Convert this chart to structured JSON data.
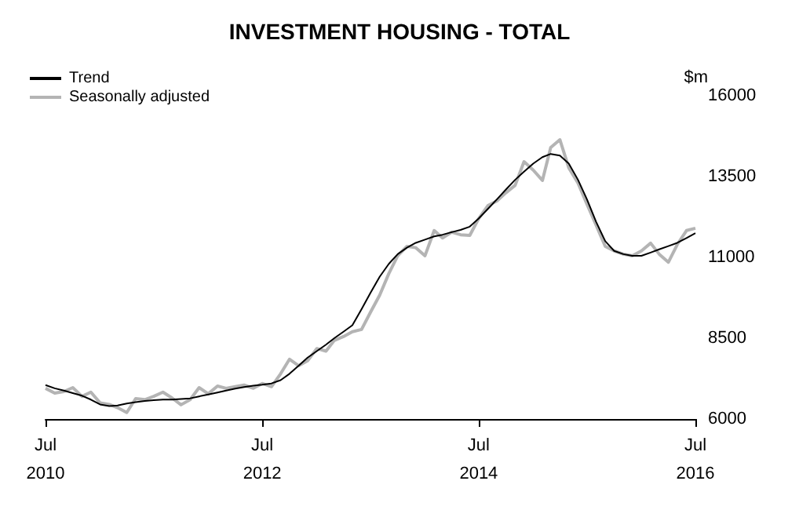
{
  "chart_data": {
    "type": "line",
    "title": "INVESTMENT HOUSING - TOTAL",
    "ylabel": "$m",
    "x": [
      "2010-07",
      "2010-08",
      "2010-09",
      "2010-10",
      "2010-11",
      "2010-12",
      "2011-01",
      "2011-02",
      "2011-03",
      "2011-04",
      "2011-05",
      "2011-06",
      "2011-07",
      "2011-08",
      "2011-09",
      "2011-10",
      "2011-11",
      "2011-12",
      "2012-01",
      "2012-02",
      "2012-03",
      "2012-04",
      "2012-05",
      "2012-06",
      "2012-07",
      "2012-08",
      "2012-09",
      "2012-10",
      "2012-11",
      "2012-12",
      "2013-01",
      "2013-02",
      "2013-03",
      "2013-04",
      "2013-05",
      "2013-06",
      "2013-07",
      "2013-08",
      "2013-09",
      "2013-10",
      "2013-11",
      "2013-12",
      "2014-01",
      "2014-02",
      "2014-03",
      "2014-04",
      "2014-05",
      "2014-06",
      "2014-07",
      "2014-08",
      "2014-09",
      "2014-10",
      "2014-11",
      "2014-12",
      "2015-01",
      "2015-02",
      "2015-03",
      "2015-04",
      "2015-05",
      "2015-06",
      "2015-07",
      "2015-08",
      "2015-09",
      "2015-10",
      "2015-11",
      "2015-12",
      "2016-01",
      "2016-02",
      "2016-03",
      "2016-04",
      "2016-05",
      "2016-06",
      "2016-07"
    ],
    "series": [
      {
        "name": "Trend",
        "color": "#000000",
        "values": [
          7050,
          6950,
          6880,
          6800,
          6720,
          6600,
          6450,
          6400,
          6420,
          6480,
          6520,
          6560,
          6580,
          6600,
          6600,
          6620,
          6640,
          6700,
          6760,
          6820,
          6880,
          6940,
          6990,
          7030,
          7060,
          7100,
          7200,
          7400,
          7650,
          7900,
          8100,
          8300,
          8500,
          8700,
          8900,
          9400,
          9900,
          10400,
          10800,
          11100,
          11300,
          11450,
          11550,
          11650,
          11700,
          11780,
          11850,
          11950,
          12200,
          12500,
          12800,
          13100,
          13400,
          13650,
          13900,
          14100,
          14200,
          14150,
          13900,
          13400,
          12800,
          12100,
          11500,
          11200,
          11100,
          11050,
          11050,
          11150,
          11250,
          11350,
          11450,
          11600,
          11750
        ]
      },
      {
        "name": "Seasonally adjusted",
        "color": "#b4b4b4",
        "values": [
          6950,
          6800,
          6850,
          6970,
          6700,
          6830,
          6500,
          6450,
          6350,
          6200,
          6630,
          6600,
          6700,
          6830,
          6650,
          6440,
          6600,
          6970,
          6780,
          7020,
          6950,
          7000,
          7050,
          6950,
          7100,
          7000,
          7400,
          7850,
          7650,
          7800,
          8180,
          8100,
          8430,
          8550,
          8700,
          8770,
          9300,
          9830,
          10500,
          11050,
          11340,
          11300,
          11050,
          11830,
          11600,
          11780,
          11700,
          11680,
          12200,
          12600,
          12750,
          13000,
          13230,
          13960,
          13700,
          13380,
          14400,
          14640,
          13770,
          13300,
          12650,
          12000,
          11340,
          11200,
          11100,
          11050,
          11200,
          11440,
          11100,
          10850,
          11400,
          11830,
          11900
        ]
      }
    ],
    "xlim": [
      "2010-07",
      "2016-07"
    ],
    "xticks": [
      {
        "value": "2010-07",
        "label": "Jul\n2010"
      },
      {
        "value": "2012-07",
        "label": "Jul\n2012"
      },
      {
        "value": "2014-07",
        "label": "Jul\n2014"
      },
      {
        "value": "2016-07",
        "label": "Jul\n2016"
      }
    ],
    "ylim": [
      6000,
      16000
    ],
    "yticks": [
      6000,
      8500,
      11000,
      13500,
      16000
    ],
    "legend": "top left",
    "marker": "none",
    "line_style": "solid"
  }
}
